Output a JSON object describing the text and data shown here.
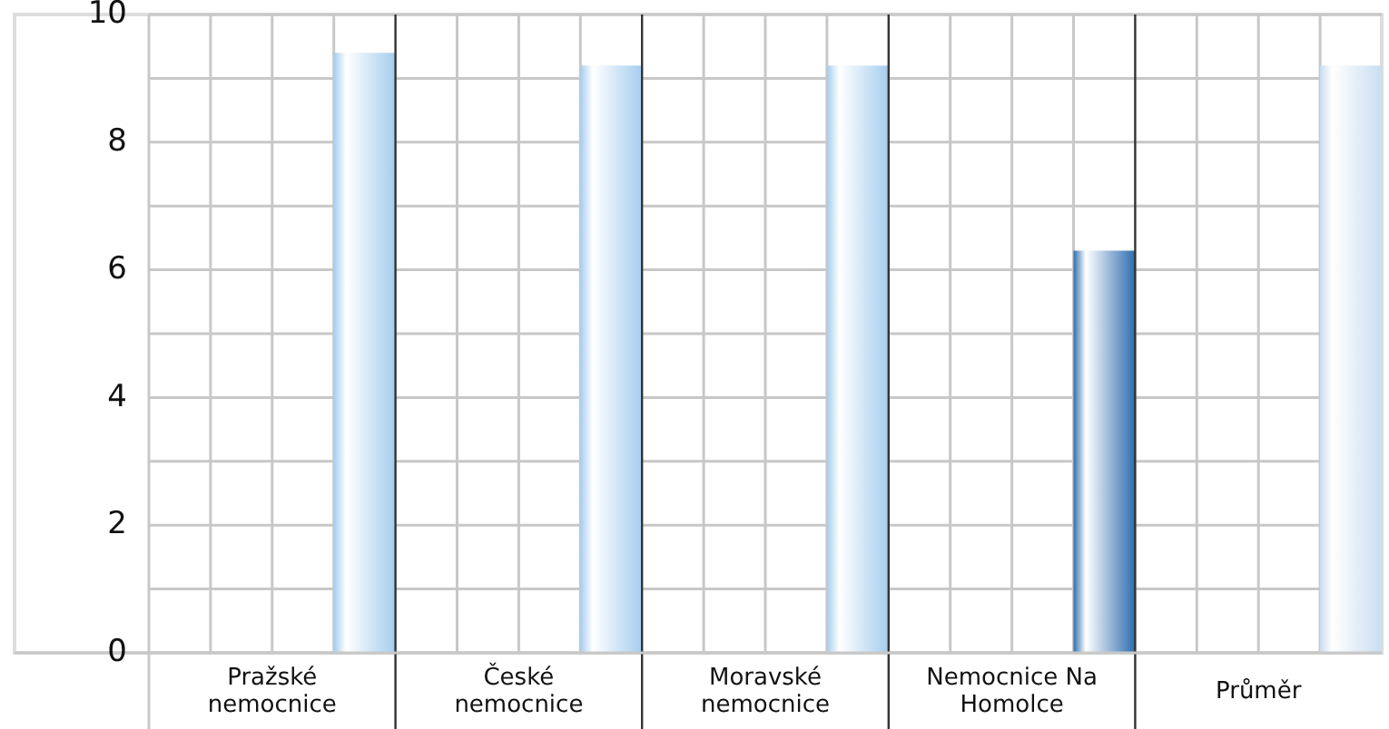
{
  "chart_data": {
    "type": "bar",
    "categories": [
      "Pražské nemocnice",
      "České nemocnice",
      "Moravské nemocnice",
      "Nemocnice Na Homolce",
      "Průměr"
    ],
    "values": [
      9.4,
      9.2,
      9.2,
      6.3,
      9.2
    ],
    "colors": [
      "#a5cdee",
      "#a5cdee",
      "#a5cdee",
      "#2e6db0",
      "#c9ddf2"
    ],
    "ylim": [
      0,
      10
    ],
    "yticks": [
      0,
      2,
      4,
      6,
      8,
      10
    ],
    "grid": true
  }
}
